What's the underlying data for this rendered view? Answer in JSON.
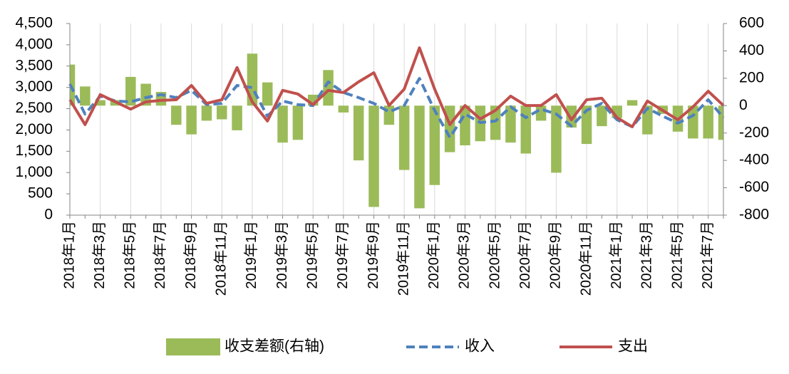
{
  "chart_data": {
    "type": "bar-line",
    "categories": [
      "2018年1月",
      null,
      "2018年3月",
      null,
      "2018年5月",
      null,
      "2018年7月",
      null,
      "2018年9月",
      null,
      "2018年11月",
      null,
      "2019年1月",
      null,
      "2019年3月",
      null,
      "2019年5月",
      null,
      "2019年7月",
      null,
      "2019年9月",
      null,
      "2019年11月",
      null,
      "2020年1月",
      null,
      "2020年3月",
      null,
      "2020年5月",
      null,
      "2020年7月",
      null,
      "2020年9月",
      null,
      "2020年11月",
      null,
      "2021年1月",
      null,
      "2021年3月",
      null,
      "2021年5月",
      null,
      "2021年7月",
      null
    ],
    "series": [
      {
        "name": "收支差额(右轴)",
        "type": "bar",
        "axis": "y2",
        "color": "#9bbb59",
        "values": [
          300,
          140,
          40,
          40,
          210,
          160,
          100,
          -140,
          -210,
          -110,
          -100,
          -180,
          380,
          170,
          -270,
          -250,
          80,
          260,
          -50,
          -400,
          -740,
          -140,
          -470,
          -750,
          -580,
          -340,
          -290,
          -260,
          -250,
          -270,
          -350,
          -110,
          -490,
          -160,
          -280,
          -150,
          -90,
          40,
          -210,
          -60,
          -190,
          -240,
          -240,
          -250
        ]
      },
      {
        "name": "收入",
        "type": "line",
        "dash": true,
        "color": "#4f81bd",
        "values": [
          3080,
          2375,
          2795,
          2680,
          2660,
          2760,
          2830,
          2760,
          2930,
          2595,
          2625,
          3045,
          2995,
          2325,
          2680,
          2595,
          2575,
          3130,
          2880,
          2760,
          2625,
          2425,
          2575,
          3210,
          2460,
          1825,
          2375,
          2175,
          2210,
          2545,
          2290,
          2490,
          2375,
          2090,
          2460,
          2625,
          2240,
          2075,
          2510,
          2325,
          2160,
          2340,
          2710,
          2290
        ]
      },
      {
        "name": "支出",
        "type": "line",
        "color": "#c0504d",
        "values": [
          2710,
          2125,
          2830,
          2660,
          2490,
          2660,
          2695,
          2710,
          3045,
          2625,
          2710,
          3465,
          2660,
          2210,
          2930,
          2845,
          2595,
          2930,
          2880,
          3130,
          3345,
          2575,
          2960,
          3930,
          2960,
          2125,
          2575,
          2260,
          2460,
          2795,
          2575,
          2575,
          2830,
          2240,
          2710,
          2745,
          2290,
          2075,
          2680,
          2460,
          2240,
          2545,
          2910,
          2575
        ]
      }
    ],
    "ylim": [
      0,
      4500
    ],
    "yticks": [
      0,
      500,
      {
        "value": 1000,
        "label": "1,000"
      },
      {
        "value": 1500,
        "label": "1,500"
      },
      {
        "value": 2000,
        "label": "2,000"
      },
      {
        "value": 2500,
        "label": "2,500"
      },
      {
        "value": 3000,
        "label": "3,000"
      },
      {
        "value": 3500,
        "label": "3,500"
      },
      {
        "value": 4000,
        "label": "4,000"
      },
      {
        "value": 4500,
        "label": "4,500"
      }
    ],
    "y2lim": [
      -800,
      600
    ],
    "y2ticks": [
      -800,
      -600,
      -400,
      -200,
      0,
      200,
      400,
      600
    ],
    "grid": "x",
    "legend": "bottom"
  }
}
